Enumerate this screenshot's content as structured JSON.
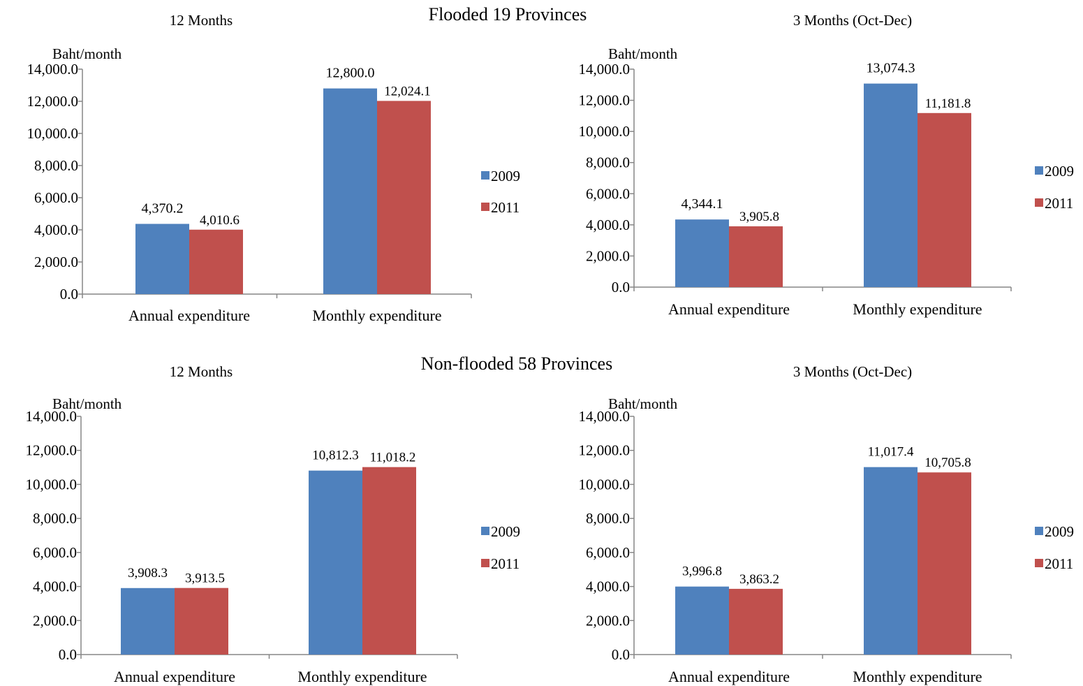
{
  "sections": [
    {
      "title": "Flooded 19 Provinces"
    },
    {
      "title": "Non-flooded 58 Provinces"
    }
  ],
  "colors": {
    "2009": "#4F81BD",
    "2011": "#C0504D"
  },
  "chart_data": [
    {
      "type": "bar",
      "title": "12 Months",
      "ylabel": "Baht/month",
      "categories": [
        "Annual expenditure",
        "Monthly expenditure"
      ],
      "series": [
        {
          "name": "2009",
          "values": [
            4370.2,
            12800.0
          ],
          "labels": [
            "4,370.2",
            "12,800.0"
          ]
        },
        {
          "name": "2011",
          "values": [
            4010.6,
            12024.1
          ],
          "labels": [
            "4,010.6",
            "12,024.1"
          ]
        }
      ],
      "ylim": [
        0,
        14000
      ],
      "yticks": [
        "0.0",
        "2,000.0",
        "4,000.0",
        "6,000.0",
        "8,000.0",
        "10,000.0",
        "12,000.0",
        "14,000.0"
      ],
      "legend": "right"
    },
    {
      "type": "bar",
      "title": "3 Months (Oct-Dec)",
      "ylabel": "Baht/month",
      "categories": [
        "Annual expenditure",
        "Monthly expenditure"
      ],
      "series": [
        {
          "name": "2009",
          "values": [
            4344.1,
            13074.3
          ],
          "labels": [
            "4,344.1",
            "13,074.3"
          ]
        },
        {
          "name": "2011",
          "values": [
            3905.8,
            11181.8
          ],
          "labels": [
            "3,905.8",
            "11,181.8"
          ]
        }
      ],
      "ylim": [
        0,
        14000
      ],
      "yticks": [
        "0.0",
        "2,000.0",
        "4,000.0",
        "6,000.0",
        "8,000.0",
        "10,000.0",
        "12,000.0",
        "14,000.0"
      ],
      "legend": "right"
    },
    {
      "type": "bar",
      "title": "12 Months",
      "ylabel": "Baht/month",
      "categories": [
        "Annual expenditure",
        "Monthly expenditure"
      ],
      "series": [
        {
          "name": "2009",
          "values": [
            3908.3,
            10812.3
          ],
          "labels": [
            "3,908.3",
            "10,812.3"
          ]
        },
        {
          "name": "2011",
          "values": [
            3913.5,
            11018.2
          ],
          "labels": [
            "3,913.5",
            "11,018.2"
          ]
        }
      ],
      "ylim": [
        0,
        14000
      ],
      "yticks": [
        "0.0",
        "2,000.0",
        "4,000.0",
        "6,000.0",
        "8,000.0",
        "10,000.0",
        "12,000.0",
        "14,000.0"
      ],
      "legend": "right"
    },
    {
      "type": "bar",
      "title": "3 Months (Oct-Dec)",
      "ylabel": "Baht/month",
      "categories": [
        "Annual expenditure",
        "Monthly expenditure"
      ],
      "series": [
        {
          "name": "2009",
          "values": [
            3996.8,
            11017.4
          ],
          "labels": [
            "3,996.8",
            "11,017.4"
          ]
        },
        {
          "name": "2011",
          "values": [
            3863.2,
            10705.8
          ],
          "labels": [
            "3,863.2",
            "10,705.8"
          ]
        }
      ],
      "ylim": [
        0,
        14000
      ],
      "yticks": [
        "0.0",
        "2,000.0",
        "4,000.0",
        "6,000.0",
        "8,000.0",
        "10,000.0",
        "12,000.0",
        "14,000.0"
      ],
      "legend": "right"
    }
  ]
}
